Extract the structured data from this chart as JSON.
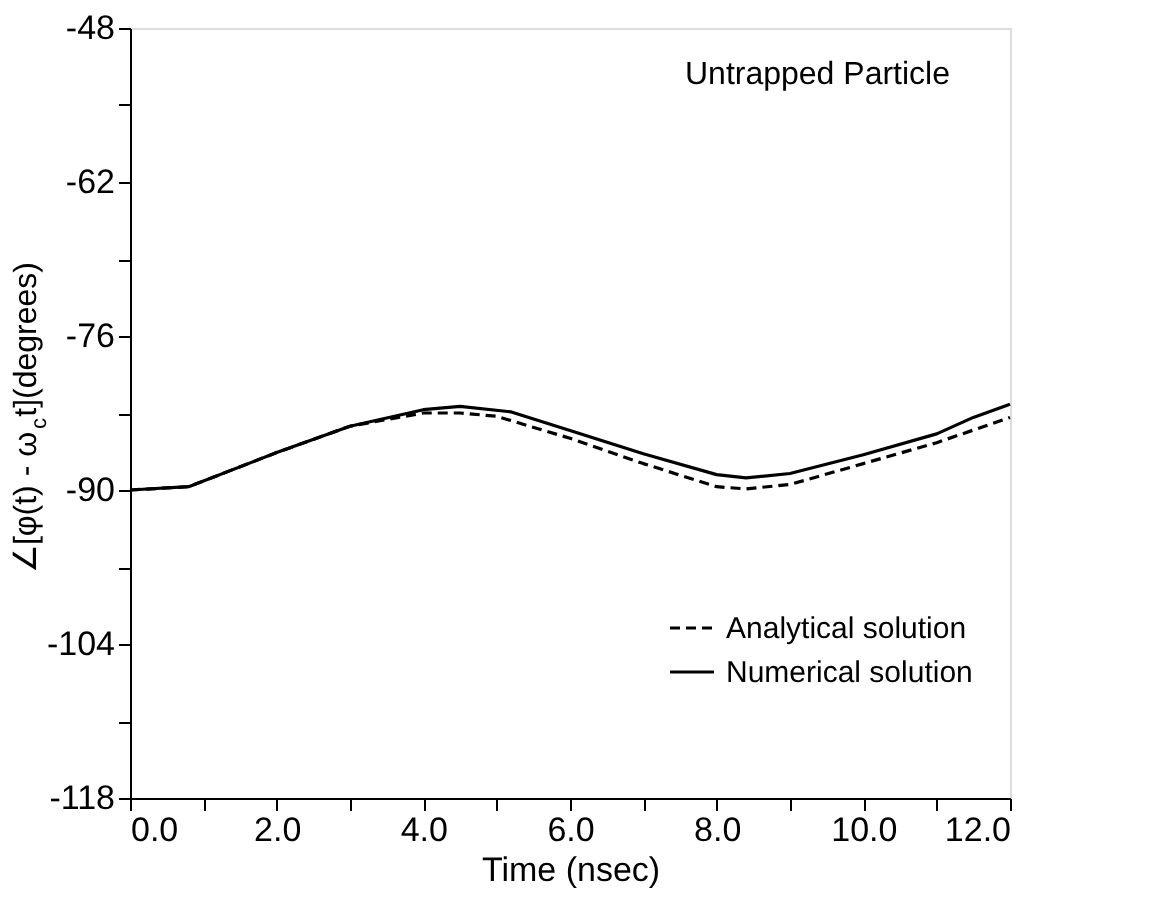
{
  "chart_data": {
    "type": "line",
    "xlabel": "Time (nsec)",
    "ylabel": "∠[φ(t) - ω$_{c}$t](degrees)",
    "annotations": [
      "Untrapped Particle"
    ],
    "xlim": [
      0,
      12
    ],
    "xticks": [
      {
        "value": 0,
        "label": "0.0"
      },
      {
        "value": 1,
        "label": null
      },
      {
        "value": 2,
        "label": "2.0"
      },
      {
        "value": 3,
        "label": null
      },
      {
        "value": 4,
        "label": "4.0"
      },
      {
        "value": 5,
        "label": null
      },
      {
        "value": 6,
        "label": "6.0"
      },
      {
        "value": 7,
        "label": null
      },
      {
        "value": 8,
        "label": "8.0"
      },
      {
        "value": 9,
        "label": null
      },
      {
        "value": 10,
        "label": "10.0"
      },
      {
        "value": 11,
        "label": null
      },
      {
        "value": 12,
        "label": "12.0"
      }
    ],
    "ylim": [
      -118,
      -48
    ],
    "yticks": [
      -118,
      {
        "value": -111,
        "label": null
      },
      -104,
      {
        "value": -97,
        "label": null
      },
      -90,
      {
        "value": -83,
        "label": null
      },
      -76,
      {
        "value": -69,
        "label": null
      },
      -62,
      {
        "value": -55,
        "label": null
      },
      -48
    ],
    "legend": "bottom right",
    "grid": false,
    "series": [
      {
        "name": "Analytical solution",
        "color": "#000000",
        "line_style": "dashed",
        "x": [
          0,
          0.8,
          2,
          3,
          4,
          4.5,
          5,
          6,
          7,
          8,
          8.4,
          9,
          10,
          11,
          12
        ],
        "values": [
          -90,
          -89.7,
          -86.6,
          -84.2,
          -83.0,
          -83.0,
          -83.3,
          -85.3,
          -87.6,
          -89.7,
          -89.9,
          -89.5,
          -87.6,
          -85.7,
          -83.4
        ]
      },
      {
        "name": "Numerical solution",
        "color": "#000000",
        "line_style": "solid",
        "x": [
          0,
          0.8,
          2,
          3,
          4,
          4.5,
          5.2,
          6,
          7,
          8,
          8.4,
          9,
          10,
          11,
          11.5,
          12
        ],
        "values": [
          -90,
          -89.7,
          -86.6,
          -84.2,
          -82.7,
          -82.4,
          -82.9,
          -84.6,
          -86.7,
          -88.6,
          -88.9,
          -88.5,
          -86.8,
          -84.9,
          -83.4,
          -82.2
        ]
      }
    ]
  }
}
